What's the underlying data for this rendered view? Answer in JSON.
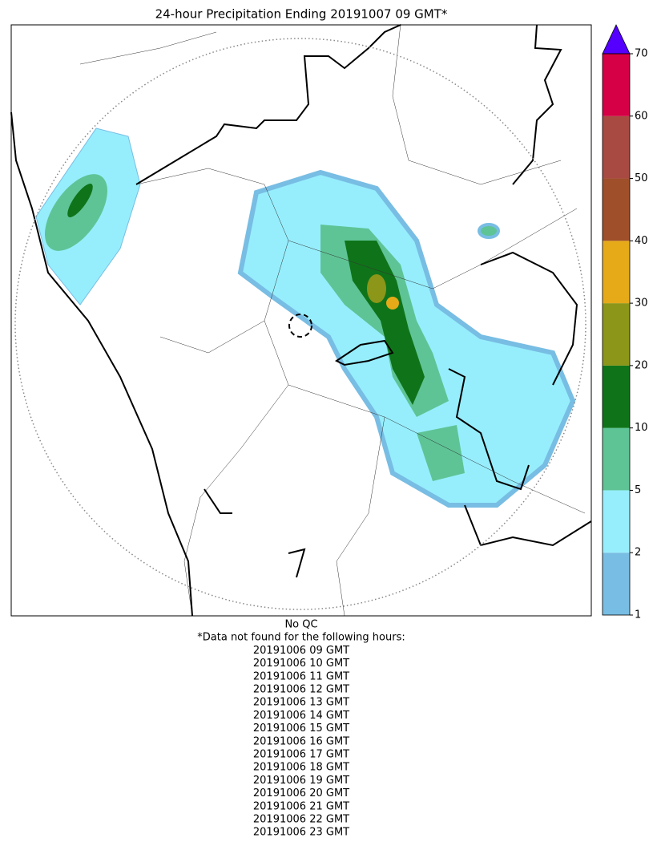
{
  "title": "24-hour Precipitation Ending 20191007 09 GMT*",
  "colorbar": {
    "ticks": [
      1,
      2,
      5,
      10,
      20,
      30,
      40,
      50,
      60,
      70
    ],
    "colors": [
      "#78bde3",
      "#96eefd",
      "#5ec496",
      "#0f7419",
      "#8c9618",
      "#e6aa19",
      "#9f4f2a",
      "#a84a42",
      "#d50045"
    ],
    "extend_color": "#5500ff"
  },
  "footer": {
    "qc": "No QC",
    "note": "*Data not found for the following hours:",
    "hours": [
      "20191006 09 GMT",
      "20191006 10 GMT",
      "20191006 11 GMT",
      "20191006 12 GMT",
      "20191006 13 GMT",
      "20191006 14 GMT",
      "20191006 15 GMT",
      "20191006 16 GMT",
      "20191006 17 GMT",
      "20191006 18 GMT",
      "20191006 19 GMT",
      "20191006 20 GMT",
      "20191006 21 GMT",
      "20191006 22 GMT",
      "20191006 23 GMT"
    ]
  }
}
